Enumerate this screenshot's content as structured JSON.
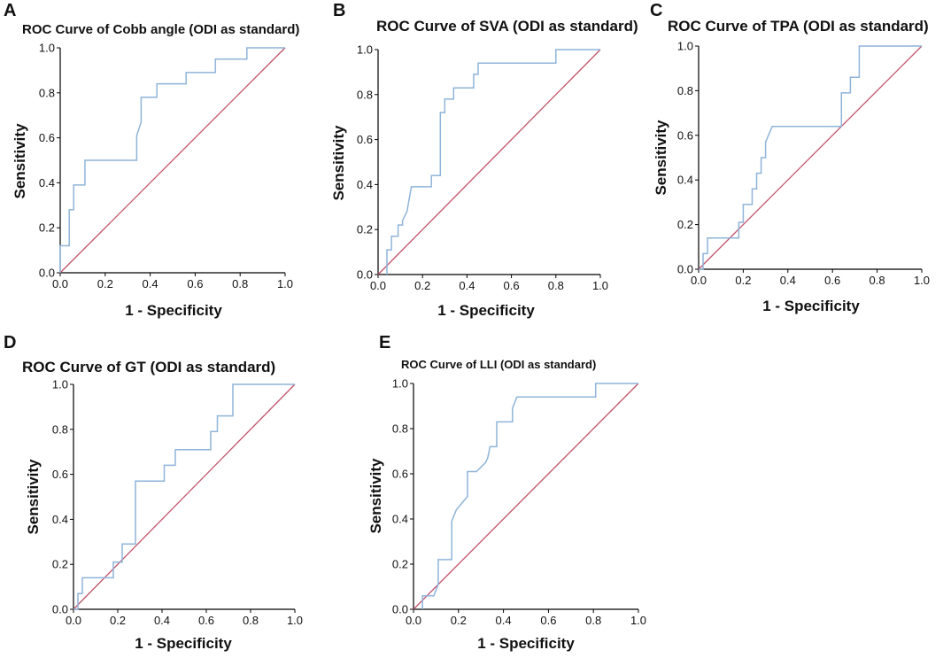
{
  "chart_data": [
    {
      "type": "line",
      "panel": "A",
      "title": "ROC Curve of Cobb angle (ODI as standard)",
      "xlabel": "1 - Specificity",
      "ylabel": "Sensitivity",
      "xlim": [
        0,
        1
      ],
      "ylim": [
        0,
        1
      ],
      "xticks": [
        "0.0",
        "0.2",
        "0.4",
        "0.6",
        "0.8",
        "1.0"
      ],
      "yticks": [
        "0.0",
        "0.2",
        "0.4",
        "0.6",
        "0.8",
        "1.0"
      ],
      "series": [
        {
          "name": "ROC curve",
          "color": "#8fb4d9",
          "x": [
            0,
            0,
            0.04,
            0.04,
            0.06,
            0.06,
            0.11,
            0.11,
            0.34,
            0.34,
            0.36,
            0.36,
            0.43,
            0.43,
            0.56,
            0.56,
            0.69,
            0.69,
            0.83,
            0.83,
            1
          ],
          "y": [
            0,
            0.12,
            0.12,
            0.28,
            0.28,
            0.39,
            0.39,
            0.5,
            0.5,
            0.61,
            0.67,
            0.78,
            0.78,
            0.84,
            0.84,
            0.89,
            0.89,
            0.95,
            0.95,
            1,
            1
          ]
        },
        {
          "name": "Reference line",
          "color": "#c0536a",
          "x": [
            0,
            1
          ],
          "y": [
            0,
            1
          ]
        }
      ]
    },
    {
      "type": "line",
      "panel": "B",
      "title": "ROC Curve of SVA (ODI as standard)",
      "xlabel": "1 - Specificity",
      "ylabel": "Sensitivity",
      "xlim": [
        0,
        1
      ],
      "ylim": [
        0,
        1
      ],
      "xticks": [
        "0.0",
        "0.2",
        "0.4",
        "0.6",
        "0.8",
        "1.0"
      ],
      "yticks": [
        "0.0",
        "0.2",
        "0.4",
        "0.6",
        "0.8",
        "1.0"
      ],
      "series": [
        {
          "name": "ROC curve",
          "color": "#8fb4d9",
          "x": [
            0.04,
            0.04,
            0.06,
            0.06,
            0.09,
            0.09,
            0.11,
            0.11,
            0.13,
            0.15,
            0.15,
            0.24,
            0.24,
            0.28,
            0.28,
            0.3,
            0.3,
            0.34,
            0.34,
            0.43,
            0.43,
            0.45,
            0.45,
            0.8,
            0.8,
            1
          ],
          "y": [
            0,
            0.11,
            0.11,
            0.17,
            0.17,
            0.22,
            0.22,
            0.24,
            0.28,
            0.39,
            0.39,
            0.39,
            0.44,
            0.44,
            0.72,
            0.72,
            0.78,
            0.78,
            0.83,
            0.83,
            0.89,
            0.89,
            0.94,
            0.94,
            1,
            1
          ]
        },
        {
          "name": "Reference line",
          "color": "#c0536a",
          "x": [
            0,
            1
          ],
          "y": [
            0,
            1
          ]
        }
      ]
    },
    {
      "type": "line",
      "panel": "C",
      "title": "ROC Curve of TPA (ODI as standard)",
      "xlabel": "1 - Specificity",
      "ylabel": "Sensitivity",
      "xlim": [
        0,
        1
      ],
      "ylim": [
        0,
        1
      ],
      "xticks": [
        "0.0",
        "0.2",
        "0.4",
        "0.6",
        "0.8",
        "1.0"
      ],
      "yticks": [
        "0.0",
        "0.2",
        "0.4",
        "0.6",
        "0.8",
        "1.0"
      ],
      "series": [
        {
          "name": "ROC curve",
          "color": "#8fb4d9",
          "x": [
            0,
            0.02,
            0.02,
            0.04,
            0.04,
            0.06,
            0.06,
            0.18,
            0.18,
            0.2,
            0.2,
            0.24,
            0.24,
            0.26,
            0.26,
            0.28,
            0.28,
            0.3,
            0.3,
            0.33,
            0.64,
            0.64,
            0.68,
            0.68,
            0.7,
            0.7,
            0.72,
            0.72,
            1
          ],
          "y": [
            0,
            0,
            0.07,
            0.07,
            0.14,
            0.14,
            0.14,
            0.14,
            0.21,
            0.21,
            0.29,
            0.29,
            0.36,
            0.36,
            0.43,
            0.43,
            0.5,
            0.5,
            0.57,
            0.64,
            0.64,
            0.79,
            0.79,
            0.86,
            0.86,
            0.86,
            0.86,
            1,
            1
          ]
        },
        {
          "name": "Reference line",
          "color": "#c0536a",
          "x": [
            0,
            1
          ],
          "y": [
            0,
            1
          ]
        }
      ]
    },
    {
      "type": "line",
      "panel": "D",
      "title": "ROC Curve of GT (ODI as standard)",
      "xlabel": "1 - Specificity",
      "ylabel": "Sensitivity",
      "xlim": [
        0,
        1
      ],
      "ylim": [
        0,
        1
      ],
      "xticks": [
        "0.0",
        "0.2",
        "0.4",
        "0.6",
        "0.8",
        "1.0"
      ],
      "yticks": [
        "0.0",
        "0.2",
        "0.4",
        "0.6",
        "0.8",
        "1.0"
      ],
      "series": [
        {
          "name": "ROC curve",
          "color": "#8fb4d9",
          "x": [
            0,
            0.02,
            0.02,
            0.04,
            0.04,
            0.06,
            0.06,
            0.18,
            0.18,
            0.22,
            0.22,
            0.28,
            0.28,
            0.41,
            0.41,
            0.46,
            0.46,
            0.62,
            0.62,
            0.65,
            0.65,
            0.68,
            0.68,
            0.72,
            0.72,
            1
          ],
          "y": [
            0,
            0,
            0.07,
            0.07,
            0.14,
            0.14,
            0.14,
            0.14,
            0.21,
            0.21,
            0.29,
            0.29,
            0.57,
            0.57,
            0.64,
            0.64,
            0.71,
            0.71,
            0.79,
            0.79,
            0.86,
            0.86,
            0.86,
            0.86,
            1,
            1
          ]
        },
        {
          "name": "Reference line",
          "color": "#c0536a",
          "x": [
            0,
            1
          ],
          "y": [
            0,
            1
          ]
        }
      ]
    },
    {
      "type": "line",
      "panel": "E",
      "title": "ROC Curve of LLI (ODI as standard)",
      "xlabel": "1 - Specificity",
      "ylabel": "Sensitivity",
      "xlim": [
        0,
        1
      ],
      "ylim": [
        0,
        1
      ],
      "xticks": [
        "0.0",
        "0.2",
        "0.4",
        "0.6",
        "0.8",
        "1.0"
      ],
      "yticks": [
        "0.0",
        "0.2",
        "0.4",
        "0.6",
        "0.8",
        "1.0"
      ],
      "series": [
        {
          "name": "ROC curve",
          "color": "#8fb4d9",
          "x": [
            0.04,
            0.04,
            0.09,
            0.11,
            0.11,
            0.17,
            0.17,
            0.19,
            0.24,
            0.24,
            0.28,
            0.32,
            0.33,
            0.34,
            0.37,
            0.37,
            0.4,
            0.4,
            0.44,
            0.44,
            0.46,
            0.48,
            0.81,
            0.81,
            1
          ],
          "y": [
            0,
            0.06,
            0.06,
            0.11,
            0.22,
            0.22,
            0.39,
            0.44,
            0.5,
            0.61,
            0.61,
            0.65,
            0.67,
            0.72,
            0.72,
            0.83,
            0.83,
            0.83,
            0.83,
            0.89,
            0.94,
            0.94,
            0.94,
            1,
            1
          ]
        },
        {
          "name": "Reference line",
          "color": "#c0536a",
          "x": [
            0,
            1
          ],
          "y": [
            0,
            1
          ]
        }
      ]
    }
  ]
}
